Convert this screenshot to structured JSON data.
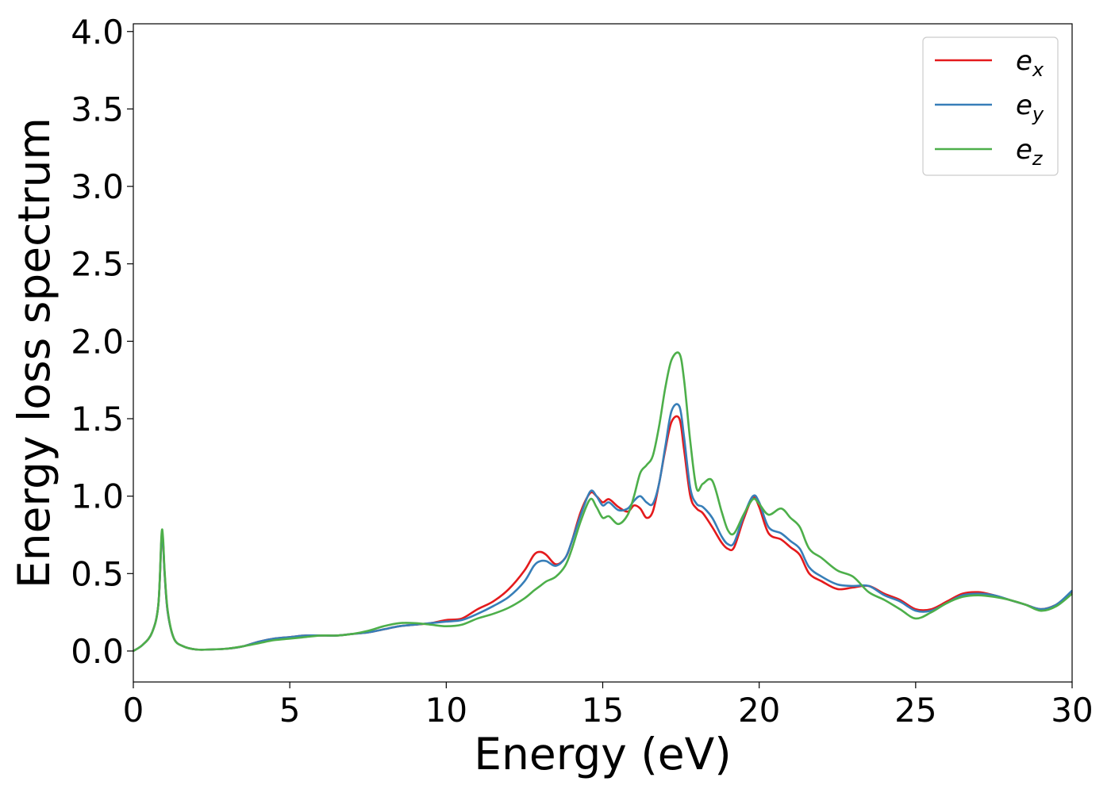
{
  "chart_data": {
    "type": "line",
    "title": "",
    "xlabel": "Energy (eV)",
    "ylabel": "Energy loss spectrum",
    "xlim": [
      0,
      30
    ],
    "ylim": [
      -0.2,
      4.05
    ],
    "xticks": [
      0,
      5,
      10,
      15,
      20,
      25,
      30
    ],
    "xtick_labels": [
      "0",
      "5",
      "10",
      "15",
      "20",
      "25",
      "30"
    ],
    "yticks": [
      0.0,
      0.5,
      1.0,
      1.5,
      2.0,
      2.5,
      3.0,
      3.5,
      4.0
    ],
    "ytick_labels": [
      "0.0",
      "0.5",
      "1.0",
      "1.5",
      "2.0",
      "2.5",
      "3.0",
      "3.5",
      "4.0"
    ],
    "grid": false,
    "legend_position": "top-right",
    "x": [
      0,
      0.3,
      0.6,
      0.8,
      0.9,
      0.95,
      1.0,
      1.1,
      1.3,
      1.6,
      2.0,
      2.5,
      3.0,
      3.5,
      4.0,
      4.5,
      5.0,
      5.5,
      6.0,
      6.5,
      7.0,
      7.5,
      8.0,
      8.5,
      9.0,
      9.5,
      10.0,
      10.5,
      11.0,
      11.5,
      12.0,
      12.5,
      12.8,
      13.0,
      13.2,
      13.5,
      13.8,
      14.0,
      14.3,
      14.6,
      14.8,
      15.0,
      15.2,
      15.5,
      15.8,
      16.0,
      16.2,
      16.4,
      16.6,
      16.8,
      17.0,
      17.2,
      17.45,
      17.6,
      17.8,
      18.0,
      18.2,
      18.5,
      18.8,
      19.0,
      19.2,
      19.5,
      19.8,
      20.0,
      20.3,
      20.7,
      21.0,
      21.3,
      21.6,
      22.0,
      22.5,
      23.0,
      23.5,
      24.0,
      24.5,
      25.0,
      25.5,
      26.0,
      26.5,
      27.0,
      27.5,
      28.0,
      28.5,
      29.0,
      29.5,
      30.0
    ],
    "series": [
      {
        "name": "e_x",
        "color": "#e41a1c",
        "values": [
          0.0,
          0.04,
          0.12,
          0.3,
          0.72,
          0.7,
          0.5,
          0.25,
          0.08,
          0.03,
          0.01,
          0.01,
          0.015,
          0.03,
          0.06,
          0.08,
          0.09,
          0.1,
          0.1,
          0.1,
          0.11,
          0.12,
          0.14,
          0.16,
          0.17,
          0.18,
          0.2,
          0.21,
          0.27,
          0.32,
          0.4,
          0.52,
          0.62,
          0.64,
          0.62,
          0.56,
          0.6,
          0.7,
          0.9,
          1.02,
          1.0,
          0.96,
          0.98,
          0.93,
          0.9,
          0.94,
          0.92,
          0.86,
          0.9,
          1.08,
          1.3,
          1.48,
          1.5,
          1.3,
          1.0,
          0.92,
          0.89,
          0.8,
          0.7,
          0.66,
          0.67,
          0.85,
          0.99,
          0.93,
          0.76,
          0.72,
          0.67,
          0.62,
          0.5,
          0.45,
          0.4,
          0.41,
          0.42,
          0.37,
          0.33,
          0.27,
          0.27,
          0.32,
          0.37,
          0.38,
          0.36,
          0.33,
          0.3,
          0.27,
          0.3,
          0.38
        ]
      },
      {
        "name": "e_y",
        "color": "#377eb8",
        "values": [
          0.0,
          0.04,
          0.12,
          0.3,
          0.72,
          0.7,
          0.5,
          0.25,
          0.08,
          0.03,
          0.01,
          0.01,
          0.015,
          0.03,
          0.06,
          0.08,
          0.09,
          0.1,
          0.1,
          0.1,
          0.11,
          0.12,
          0.14,
          0.16,
          0.17,
          0.18,
          0.19,
          0.2,
          0.24,
          0.29,
          0.35,
          0.45,
          0.55,
          0.58,
          0.58,
          0.55,
          0.6,
          0.7,
          0.88,
          1.03,
          1.0,
          0.94,
          0.96,
          0.91,
          0.92,
          0.97,
          1.0,
          0.96,
          0.95,
          1.08,
          1.32,
          1.55,
          1.58,
          1.38,
          1.05,
          0.95,
          0.93,
          0.86,
          0.74,
          0.69,
          0.7,
          0.87,
          1.0,
          0.96,
          0.8,
          0.76,
          0.71,
          0.66,
          0.54,
          0.48,
          0.43,
          0.42,
          0.42,
          0.36,
          0.32,
          0.26,
          0.26,
          0.31,
          0.36,
          0.37,
          0.36,
          0.33,
          0.3,
          0.27,
          0.3,
          0.39
        ]
      },
      {
        "name": "e_z",
        "color": "#4daf4a",
        "values": [
          0.0,
          0.04,
          0.12,
          0.3,
          0.75,
          0.73,
          0.52,
          0.26,
          0.08,
          0.03,
          0.01,
          0.01,
          0.015,
          0.03,
          0.05,
          0.07,
          0.08,
          0.09,
          0.1,
          0.1,
          0.11,
          0.13,
          0.16,
          0.18,
          0.18,
          0.17,
          0.16,
          0.17,
          0.21,
          0.24,
          0.28,
          0.34,
          0.39,
          0.42,
          0.45,
          0.48,
          0.55,
          0.65,
          0.84,
          0.98,
          0.93,
          0.86,
          0.87,
          0.82,
          0.88,
          1.0,
          1.15,
          1.2,
          1.26,
          1.45,
          1.7,
          1.88,
          1.92,
          1.75,
          1.35,
          1.05,
          1.08,
          1.1,
          0.9,
          0.78,
          0.76,
          0.88,
          0.98,
          0.95,
          0.88,
          0.92,
          0.86,
          0.8,
          0.66,
          0.6,
          0.52,
          0.48,
          0.38,
          0.33,
          0.27,
          0.21,
          0.25,
          0.31,
          0.35,
          0.36,
          0.35,
          0.33,
          0.3,
          0.26,
          0.29,
          0.37
        ]
      }
    ]
  },
  "legend": {
    "items": [
      {
        "base": "e",
        "sub": "x",
        "color": "#e41a1c"
      },
      {
        "base": "e",
        "sub": "y",
        "color": "#377eb8"
      },
      {
        "base": "e",
        "sub": "z",
        "color": "#4daf4a"
      }
    ]
  }
}
